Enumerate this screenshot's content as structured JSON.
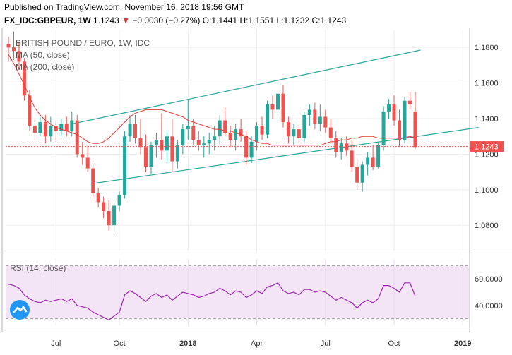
{
  "header": {
    "line1": "Published on TradingView.com, November 16, 2018 19:56 GMT",
    "symbol": "FX_IDC:GBPEUR, 1W",
    "last": "1.1243",
    "change": "−0.0030 (−0.27%)",
    "ohlc": "O:1.1441 H:1.1551 L:1.1232 C:1.1243"
  },
  "colors": {
    "up": "#26a69a",
    "down": "#ef5350",
    "ma": "#e53935",
    "rsi": "#9c27b0",
    "channel": "#26a69a",
    "rsi_bg": "#f3e5f5"
  },
  "icons": {
    "logo": "tradingview-cloud-icon"
  },
  "chart_data": [
    {
      "type": "candlestick",
      "title": "BRITISH POUND / EURO, 1W, IDC",
      "legend": [
        "MA (50, close)",
        "MA (200, close)"
      ],
      "x_ticks": [
        "Jul",
        "Oct",
        "2018",
        "Apr",
        "Jul",
        "Oct",
        "2019"
      ],
      "y_ticks": [
        "1.1800",
        "1.1600",
        "1.1400",
        "1.1200",
        "1.1000",
        "1.0800"
      ],
      "ylim": [
        1.065,
        1.19
      ],
      "last_price": "1.1243",
      "candles": [
        [
          1.182,
          1.186,
          1.172,
          1.18
        ],
        [
          1.18,
          1.189,
          1.173,
          1.178
        ],
        [
          1.178,
          1.183,
          1.168,
          1.172
        ],
        [
          1.172,
          1.174,
          1.15,
          1.153
        ],
        [
          1.153,
          1.156,
          1.133,
          1.136
        ],
        [
          1.136,
          1.14,
          1.128,
          1.132
        ],
        [
          1.132,
          1.141,
          1.13,
          1.138
        ],
        [
          1.138,
          1.142,
          1.126,
          1.13
        ],
        [
          1.13,
          1.141,
          1.127,
          1.136
        ],
        [
          1.136,
          1.139,
          1.127,
          1.133
        ],
        [
          1.133,
          1.14,
          1.13,
          1.137
        ],
        [
          1.137,
          1.141,
          1.13,
          1.133
        ],
        [
          1.133,
          1.144,
          1.13,
          1.139
        ],
        [
          1.139,
          1.142,
          1.118,
          1.12
        ],
        [
          1.12,
          1.127,
          1.114,
          1.118
        ],
        [
          1.118,
          1.125,
          1.11,
          1.112
        ],
        [
          1.112,
          1.115,
          1.095,
          1.098
        ],
        [
          1.098,
          1.101,
          1.09,
          1.093
        ],
        [
          1.093,
          1.096,
          1.084,
          1.088
        ],
        [
          1.088,
          1.094,
          1.077,
          1.08
        ],
        [
          1.08,
          1.093,
          1.076,
          1.091
        ],
        [
          1.091,
          1.099,
          1.088,
          1.097
        ],
        [
          1.097,
          1.133,
          1.095,
          1.13
        ],
        [
          1.13,
          1.142,
          1.127,
          1.137
        ],
        [
          1.137,
          1.142,
          1.126,
          1.129
        ],
        [
          1.129,
          1.14,
          1.12,
          1.124
        ],
        [
          1.124,
          1.131,
          1.11,
          1.113
        ],
        [
          1.113,
          1.127,
          1.109,
          1.125
        ],
        [
          1.125,
          1.132,
          1.118,
          1.128
        ],
        [
          1.128,
          1.143,
          1.117,
          1.122
        ],
        [
          1.122,
          1.133,
          1.115,
          1.13
        ],
        [
          1.13,
          1.14,
          1.11,
          1.116
        ],
        [
          1.116,
          1.128,
          1.112,
          1.125
        ],
        [
          1.125,
          1.137,
          1.12,
          1.134
        ],
        [
          1.134,
          1.151,
          1.128,
          1.136
        ],
        [
          1.136,
          1.14,
          1.125,
          1.128
        ],
        [
          1.128,
          1.133,
          1.122,
          1.125
        ],
        [
          1.125,
          1.13,
          1.118,
          1.126
        ],
        [
          1.126,
          1.132,
          1.12,
          1.128
        ],
        [
          1.128,
          1.136,
          1.122,
          1.13
        ],
        [
          1.13,
          1.142,
          1.125,
          1.139
        ],
        [
          1.139,
          1.146,
          1.13,
          1.132
        ],
        [
          1.132,
          1.136,
          1.124,
          1.128
        ],
        [
          1.128,
          1.137,
          1.122,
          1.134
        ],
        [
          1.134,
          1.14,
          1.127,
          1.13
        ],
        [
          1.13,
          1.133,
          1.114,
          1.118
        ],
        [
          1.118,
          1.13,
          1.115,
          1.127
        ],
        [
          1.127,
          1.138,
          1.122,
          1.136
        ],
        [
          1.136,
          1.141,
          1.128,
          1.131
        ],
        [
          1.131,
          1.15,
          1.129,
          1.148
        ],
        [
          1.148,
          1.153,
          1.14,
          1.145
        ],
        [
          1.145,
          1.16,
          1.142,
          1.154
        ],
        [
          1.154,
          1.159,
          1.135,
          1.138
        ],
        [
          1.138,
          1.141,
          1.126,
          1.13
        ],
        [
          1.13,
          1.137,
          1.125,
          1.134
        ],
        [
          1.134,
          1.137,
          1.126,
          1.129
        ],
        [
          1.129,
          1.144,
          1.127,
          1.142
        ],
        [
          1.142,
          1.148,
          1.136,
          1.145
        ],
        [
          1.145,
          1.149,
          1.134,
          1.137
        ],
        [
          1.137,
          1.148,
          1.133,
          1.141
        ],
        [
          1.141,
          1.145,
          1.132,
          1.135
        ],
        [
          1.135,
          1.14,
          1.126,
          1.129
        ],
        [
          1.129,
          1.133,
          1.118,
          1.121
        ],
        [
          1.121,
          1.129,
          1.117,
          1.126
        ],
        [
          1.126,
          1.13,
          1.119,
          1.122
        ],
        [
          1.122,
          1.128,
          1.11,
          1.113
        ],
        [
          1.113,
          1.117,
          1.1,
          1.104
        ],
        [
          1.104,
          1.116,
          1.099,
          1.114
        ],
        [
          1.114,
          1.121,
          1.108,
          1.118
        ],
        [
          1.118,
          1.125,
          1.111,
          1.113
        ],
        [
          1.113,
          1.127,
          1.112,
          1.125
        ],
        [
          1.125,
          1.147,
          1.122,
          1.144
        ],
        [
          1.144,
          1.151,
          1.14,
          1.148
        ],
        [
          1.148,
          1.153,
          1.136,
          1.139
        ],
        [
          1.139,
          1.145,
          1.124,
          1.128
        ],
        [
          1.128,
          1.152,
          1.126,
          1.15
        ],
        [
          1.15,
          1.155,
          1.145,
          1.148
        ],
        [
          1.144,
          1.155,
          1.123,
          1.124
        ]
      ],
      "ma50": [
        1.176,
        1.171,
        1.165,
        1.159,
        1.152,
        1.146,
        1.142,
        1.139,
        1.137,
        1.135,
        1.134,
        1.133,
        1.132,
        1.131,
        1.129,
        1.127,
        1.126,
        1.126,
        1.127,
        1.129,
        1.132,
        1.135,
        1.138,
        1.141,
        1.143,
        1.144,
        1.145,
        1.145,
        1.145,
        1.145,
        1.144,
        1.143,
        1.142,
        1.141,
        1.139,
        1.138,
        1.137,
        1.136,
        1.135,
        1.134,
        1.134,
        1.133,
        1.133,
        1.132,
        1.131,
        1.13,
        1.128,
        1.127,
        1.126,
        1.126,
        1.125,
        1.125,
        1.125,
        1.125,
        1.125,
        1.125,
        1.125,
        1.125,
        1.125,
        1.125,
        1.126,
        1.127,
        1.127,
        1.128,
        1.128,
        1.129,
        1.129,
        1.13,
        1.13,
        1.13,
        1.129,
        1.129,
        1.129,
        1.129,
        1.129,
        1.129,
        1.13,
        1.129
      ],
      "channel": [
        {
          "x1": 12,
          "y1": 1.137,
          "x2": 78,
          "y2": 1.1785
        },
        {
          "x1": 16,
          "y1": 1.1035,
          "x2": 89,
          "y2": 1.135
        }
      ]
    },
    {
      "type": "line",
      "title": "RSI (14, close)",
      "y_ticks": [
        "60.0000",
        "40.0000"
      ],
      "ylim": [
        25,
        75
      ],
      "bands": [
        70,
        30
      ],
      "x_ticks": [
        "Jul",
        "Oct",
        "2018",
        "Apr",
        "Jul",
        "Oct",
        "2019"
      ],
      "values": [
        56,
        55,
        53,
        48,
        45,
        43,
        42,
        44,
        43,
        44,
        45,
        43,
        45,
        40,
        39,
        38,
        35,
        33,
        31,
        29,
        32,
        35,
        48,
        51,
        49,
        46,
        43,
        47,
        49,
        46,
        48,
        44,
        47,
        50,
        49,
        48,
        46,
        47,
        49,
        50,
        53,
        51,
        48,
        51,
        50,
        46,
        48,
        51,
        49,
        54,
        55,
        57,
        51,
        49,
        50,
        48,
        52,
        52,
        50,
        51,
        50,
        47,
        44,
        46,
        44,
        42,
        38,
        42,
        44,
        42,
        45,
        55,
        55,
        53,
        50,
        57,
        57,
        47
      ]
    }
  ]
}
